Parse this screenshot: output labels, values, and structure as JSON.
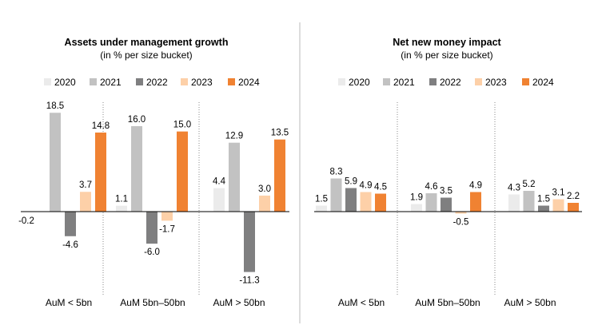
{
  "colors": {
    "2020": "#ebebeb",
    "2021": "#c2c2c2",
    "2022": "#7f7f80",
    "2023": "#fdd0a8",
    "2024": "#f08232",
    "axis": "#000000",
    "separator": "#888888",
    "center_divider": "#bbbbbb"
  },
  "chart_data": [
    {
      "type": "bar",
      "title": "Assets under management growth",
      "subtitle": "(in % per size bucket)",
      "legend": [
        "2020",
        "2021",
        "2022",
        "2023",
        "2024"
      ],
      "legend_position": "top",
      "categories": [
        "AuM < 5bn",
        "AuM 5bn–50bn",
        "AuM > 50bn"
      ],
      "series": [
        {
          "name": "2020",
          "values": [
            null,
            1.1,
            4.4
          ]
        },
        {
          "name": "2021",
          "values": [
            18.5,
            16.0,
            12.9
          ]
        },
        {
          "name": "2022",
          "values": [
            -4.6,
            -6.0,
            -11.3
          ]
        },
        {
          "name": "2023",
          "values": [
            3.7,
            -1.7,
            3.0
          ]
        },
        {
          "name": "2024",
          "values": [
            14.8,
            15.0,
            13.5
          ]
        }
      ],
      "extra_labels": [
        {
          "category": 0,
          "text": "-0.2"
        }
      ],
      "value_labels": [
        [
          "",
          "1.1",
          "4.4"
        ],
        [
          "18.5",
          "16.0",
          "12.9"
        ],
        [
          "-4.6",
          "-6.0",
          "-11.3"
        ],
        [
          "3.7",
          "-1.7",
          "3.0"
        ],
        [
          "14.8",
          "15.0",
          "13.5"
        ]
      ],
      "grid": false
    },
    {
      "type": "bar",
      "title": "Net new money impact",
      "subtitle": "(in % per size bucket)",
      "legend": [
        "2020",
        "2021",
        "2022",
        "2023",
        "2024"
      ],
      "legend_position": "top",
      "categories": [
        "AuM < 5bn",
        "AuM 5bn–50bn",
        "AuM > 50bn"
      ],
      "series": [
        {
          "name": "2020",
          "values": [
            1.5,
            1.9,
            4.3
          ]
        },
        {
          "name": "2021",
          "values": [
            8.3,
            4.6,
            5.2
          ]
        },
        {
          "name": "2022",
          "values": [
            5.9,
            3.5,
            1.5
          ]
        },
        {
          "name": "2023",
          "values": [
            4.9,
            -0.5,
            3.1
          ]
        },
        {
          "name": "2024",
          "values": [
            4.5,
            4.9,
            2.2
          ]
        }
      ],
      "value_labels": [
        [
          "1.5",
          "1.9",
          "4.3"
        ],
        [
          "8.3",
          "4.6",
          "5.2"
        ],
        [
          "5.9",
          "3.5",
          "1.5"
        ],
        [
          "4.9",
          "-0.5",
          "3.1"
        ],
        [
          "4.5",
          "4.9",
          "2.2"
        ]
      ],
      "grid": false
    }
  ]
}
